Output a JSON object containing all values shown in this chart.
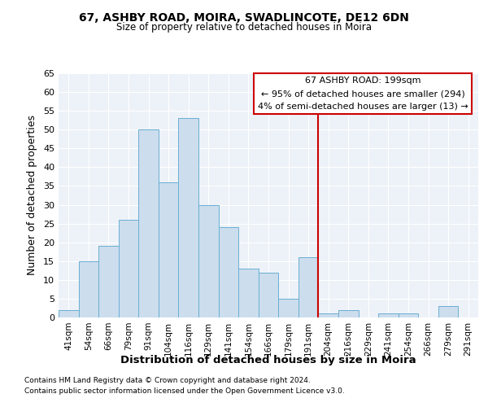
{
  "title": "67, ASHBY ROAD, MOIRA, SWADLINCOTE, DE12 6DN",
  "subtitle": "Size of property relative to detached houses in Moira",
  "xlabel": "Distribution of detached houses by size in Moira",
  "ylabel": "Number of detached properties",
  "footer1": "Contains HM Land Registry data © Crown copyright and database right 2024.",
  "footer2": "Contains public sector information licensed under the Open Government Licence v3.0.",
  "bar_labels": [
    "41sqm",
    "54sqm",
    "66sqm",
    "79sqm",
    "91sqm",
    "104sqm",
    "116sqm",
    "129sqm",
    "141sqm",
    "154sqm",
    "166sqm",
    "179sqm",
    "191sqm",
    "204sqm",
    "216sqm",
    "229sqm",
    "241sqm",
    "254sqm",
    "266sqm",
    "279sqm",
    "291sqm"
  ],
  "bar_values": [
    2,
    15,
    19,
    26,
    50,
    36,
    53,
    30,
    24,
    13,
    12,
    5,
    16,
    1,
    2,
    0,
    1,
    1,
    0,
    3,
    0
  ],
  "bar_color": "#ccdded",
  "bar_edgecolor": "#6aafd4",
  "annotation_label": "67 ASHBY ROAD: 199sqm",
  "annotation_text2": "← 95% of detached houses are smaller (294)",
  "annotation_text3": "4% of semi-detached houses are larger (13) →",
  "vline_color": "#cc0000",
  "annotation_box_edgecolor": "#cc0000",
  "bg_color": "#edf2f8",
  "grid_color": "#ffffff",
  "ylim": [
    0,
    65
  ],
  "yticks": [
    0,
    5,
    10,
    15,
    20,
    25,
    30,
    35,
    40,
    45,
    50,
    55,
    60,
    65
  ],
  "vline_index": 13.0
}
